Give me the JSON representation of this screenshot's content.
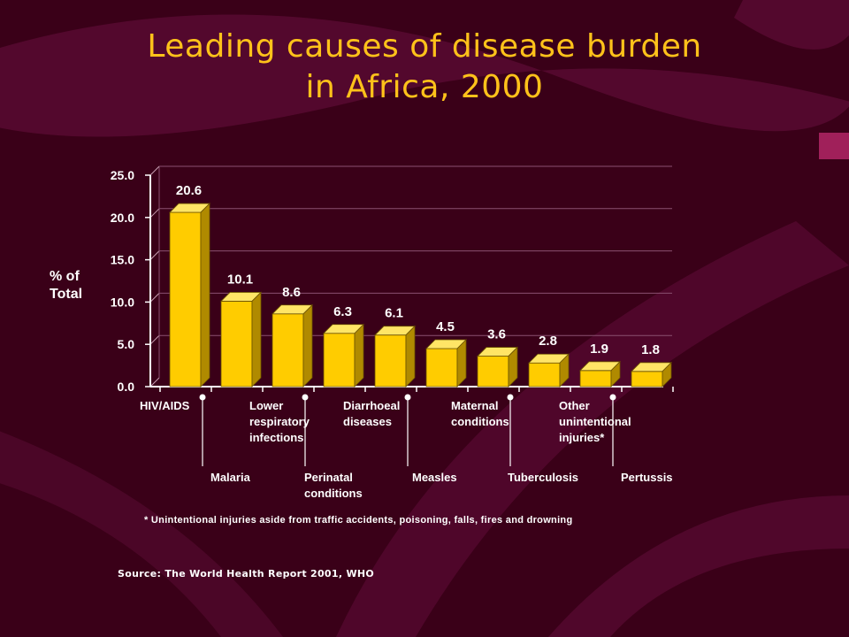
{
  "title_line1": "Leading causes of disease burden",
  "title_line2": "in Africa, 2000",
  "footnote": "* Unintentional injuries aside from traffic accidents, poisoning, falls, fires and drowning",
  "source": "Source: The World Health Report 2001, WHO",
  "colors": {
    "bar": "#ffcc00",
    "text": "#ffffff",
    "title": "#ffc21a",
    "background": "#3a0018"
  },
  "chart_data": {
    "type": "bar",
    "title": "Leading causes of disease burden in Africa, 2000",
    "xlabel": "",
    "ylabel": "% of Total",
    "ylim": [
      0,
      25
    ],
    "yticks": [
      "0.0",
      "5.0",
      "10.0",
      "15.0",
      "20.0",
      "25.0"
    ],
    "grid": true,
    "categories": [
      "HIV/AIDS",
      "Malaria",
      "Lower respiratory infections",
      "Perinatal conditions",
      "Diarrhoeal diseases",
      "Measles",
      "Maternal conditions",
      "Tuberculosis",
      "Other unintentional injuries*",
      "Pertussis"
    ],
    "category_labels": [
      "HIV/AIDS",
      "Malaria",
      "Lower\nrespiratory\ninfections",
      "Perinatal\nconditions",
      "Diarrhoeal\ndiseases",
      "Measles",
      "Maternal\nconditions",
      "Tuberculosis",
      "Other\nunintentional\ninjuries*",
      "Pertussis"
    ],
    "values": [
      20.6,
      10.1,
      8.6,
      6.3,
      6.1,
      4.5,
      3.6,
      2.8,
      1.9,
      1.8
    ],
    "value_labels": [
      "20.6",
      "10.1",
      "8.6",
      "6.3",
      "6.1",
      "4.5",
      "3.6",
      "2.8",
      "1.9",
      "1.8"
    ]
  }
}
